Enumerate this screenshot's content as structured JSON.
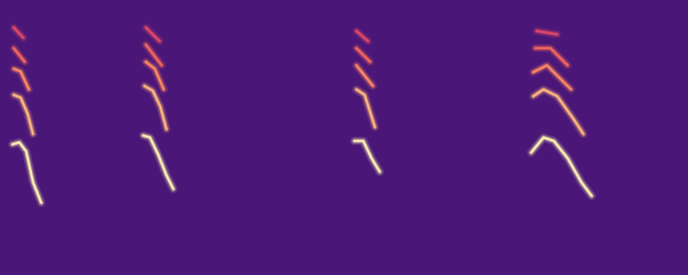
{
  "chart_data": {
    "type": "spectrogram",
    "xlim": [
      0,
      1000
    ],
    "ylim": [
      0,
      400
    ],
    "tick_labels": false,
    "calls": [
      {
        "harmonics": [
          {
            "x": [
              18,
              28,
              38,
              48,
              60
            ],
            "y": [
              190,
              193,
              180,
              135,
              105
            ]
          },
          {
            "x": [
              20,
              30,
              40,
              48
            ],
            "y": [
              262,
              258,
              235,
              205
            ]
          },
          {
            "x": [
              20,
              30,
              42
            ],
            "y": [
              300,
              296,
              270
            ]
          },
          {
            "x": [
              20,
              36
            ],
            "y": [
              330,
              310
            ]
          },
          {
            "x": [
              20,
              34
            ],
            "y": [
              360,
              345
            ]
          }
        ]
      },
      {
        "harmonics": [
          {
            "x": [
              208,
              218,
              230,
              242,
              252
            ],
            "y": [
              203,
              200,
              175,
              145,
              125
            ]
          },
          {
            "x": [
              210,
              222,
              233,
              242
            ],
            "y": [
              275,
              268,
              245,
              212
            ]
          },
          {
            "x": [
              212,
              225,
              238
            ],
            "y": [
              310,
              300,
              270
            ]
          },
          {
            "x": [
              212,
              235
            ],
            "y": [
              335,
              305
            ]
          },
          {
            "x": [
              212,
              232
            ],
            "y": [
              360,
              340
            ]
          }
        ]
      },
      {
        "harmonics": [
          {
            "x": [
              515,
              528,
              540,
              552
            ],
            "y": [
              195,
              195,
              170,
              150
            ]
          },
          {
            "x": [
              518,
              530,
              545
            ],
            "y": [
              270,
              262,
              215
            ]
          },
          {
            "x": [
              518,
              542
            ],
            "y": [
              305,
              275
            ]
          },
          {
            "x": [
              518,
              538
            ],
            "y": [
              330,
              310
            ]
          },
          {
            "x": [
              518,
              535
            ],
            "y": [
              355,
              340
            ]
          }
        ]
      },
      {
        "harmonics": [
          {
            "x": [
              772,
              790,
              805,
              825,
              845,
              860
            ],
            "y": [
              178,
              200,
              195,
              170,
              135,
              115
            ]
          },
          {
            "x": [
              775,
              790,
              810,
              835,
              848
            ],
            "y": [
              260,
              270,
              260,
              225,
              205
            ]
          },
          {
            "x": [
              775,
              795,
              830
            ],
            "y": [
              295,
              305,
              270
            ]
          },
          {
            "x": [
              778,
              800,
              825
            ],
            "y": [
              330,
              330,
              305
            ]
          },
          {
            "x": [
              780,
              810
            ],
            "y": [
              355,
              350
            ]
          }
        ]
      }
    ]
  }
}
